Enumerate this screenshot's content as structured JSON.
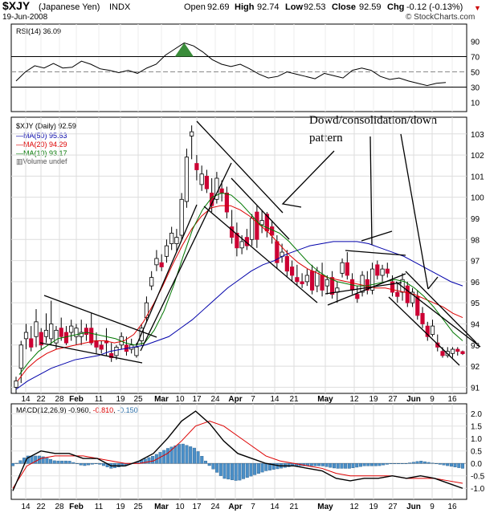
{
  "header": {
    "symbol": "$XJY",
    "name": "(Japanese Yen)",
    "exchange": "INDX",
    "date": "19-Jun-2008",
    "open_label": "Open",
    "open": "92.69",
    "high_label": "High",
    "high": "92.74",
    "low_label": "Low",
    "low": "92.53",
    "close_label": "Close",
    "close": "92.59",
    "chg_label": "Chg",
    "chg": "-0.12 (-0.13%)",
    "brand": "© StockCharts.com"
  },
  "rsi_panel": {
    "label": "RSI(14) 36.09",
    "ticks": [
      "90",
      "70",
      "50",
      "30",
      "10"
    ]
  },
  "price_panel": {
    "legend_title": "$XJY (Daily) 92.59",
    "ma50_label": "MA(50) 95.63",
    "ma20_label": "MA(20) 94.29",
    "ma10_label": "MA(10) 93.17",
    "volume_label": "Volume undef",
    "ticks": [
      "103",
      "102",
      "101",
      "100",
      "99",
      "98",
      "97",
      "96",
      "95",
      "94",
      "93",
      "92",
      "91"
    ]
  },
  "annotation": {
    "text": "Dowd/consolidation/down pattern"
  },
  "macd_panel": {
    "label": "MACD(12,26,9)",
    "value1": "-0.960",
    "value2": "-0.810",
    "value3": "-0.150",
    "ticks": [
      "2.0",
      "1.5",
      "1.0",
      "0.5",
      "0.0",
      "-0.5",
      "-1.0"
    ]
  },
  "x_axis": {
    "labels": [
      "14",
      "22",
      "28",
      "Feb",
      "11",
      "19",
      "25",
      "Mar",
      "10",
      "17",
      "24",
      "Apr",
      "7",
      "14",
      "21",
      "May",
      "12",
      "19",
      "27",
      "Jun",
      "9",
      "16"
    ]
  },
  "colors": {
    "up_candle": "#ffffff",
    "down_candle": "#cc0033",
    "ma50": "#0000aa",
    "ma20": "#dd0000",
    "ma10": "#007700",
    "macd_line": "#000000",
    "signal_line": "#dd0000",
    "histogram": "#4a8fc8",
    "chg_negative": "#cc0000",
    "rsi_peak": "#3a8c3a"
  },
  "chart_data": {
    "type": "candlestick",
    "x_axis_labels": [
      "14",
      "22",
      "28",
      "Feb",
      "11",
      "19",
      "25",
      "Mar",
      "10",
      "17",
      "24",
      "Apr",
      "7",
      "14",
      "21",
      "May",
      "12",
      "19",
      "27",
      "Jun",
      "9",
      "16"
    ],
    "price": {
      "ylim": [
        90.9,
        103.6
      ],
      "candles": [
        {
          "o": 91.0,
          "h": 91.5,
          "l": 90.7,
          "c": 91.3
        },
        {
          "o": 91.9,
          "h": 93.2,
          "l": 91.2,
          "c": 93.0
        },
        {
          "o": 93.3,
          "h": 94.0,
          "l": 92.8,
          "c": 93.6
        },
        {
          "o": 93.3,
          "h": 93.9,
          "l": 92.7,
          "c": 92.9
        },
        {
          "o": 93.4,
          "h": 94.7,
          "l": 92.9,
          "c": 94.1
        },
        {
          "o": 93.6,
          "h": 93.8,
          "l": 92.8,
          "c": 93.0
        },
        {
          "o": 93.4,
          "h": 94.5,
          "l": 93.1,
          "c": 93.7
        },
        {
          "o": 93.3,
          "h": 95.1,
          "l": 93.0,
          "c": 94.0
        },
        {
          "o": 93.1,
          "h": 93.9,
          "l": 92.8,
          "c": 93.7
        },
        {
          "o": 93.8,
          "h": 94.3,
          "l": 93.2,
          "c": 93.4
        },
        {
          "o": 93.6,
          "h": 93.9,
          "l": 93.0,
          "c": 93.1
        },
        {
          "o": 93.6,
          "h": 94.2,
          "l": 93.2,
          "c": 93.9
        },
        {
          "o": 93.4,
          "h": 94.0,
          "l": 93.0,
          "c": 93.8
        },
        {
          "o": 93.4,
          "h": 94.2,
          "l": 93.0,
          "c": 93.6
        },
        {
          "o": 93.8,
          "h": 94.0,
          "l": 93.2,
          "c": 93.5
        },
        {
          "o": 93.8,
          "h": 94.5,
          "l": 93.0,
          "c": 93.1
        },
        {
          "o": 93.2,
          "h": 93.6,
          "l": 92.6,
          "c": 92.9
        },
        {
          "o": 93.0,
          "h": 93.2,
          "l": 92.6,
          "c": 92.8
        },
        {
          "o": 93.2,
          "h": 93.8,
          "l": 92.5,
          "c": 93.1
        },
        {
          "o": 92.6,
          "h": 93.1,
          "l": 92.2,
          "c": 92.4
        },
        {
          "o": 92.5,
          "h": 93.0,
          "l": 92.3,
          "c": 92.9
        },
        {
          "o": 93.0,
          "h": 93.6,
          "l": 92.8,
          "c": 93.4
        },
        {
          "o": 93.0,
          "h": 93.4,
          "l": 92.5,
          "c": 92.7
        },
        {
          "o": 92.8,
          "h": 93.3,
          "l": 92.6,
          "c": 93.0
        },
        {
          "o": 92.5,
          "h": 93.1,
          "l": 92.4,
          "c": 92.9
        },
        {
          "o": 93.2,
          "h": 94.0,
          "l": 93.0,
          "c": 93.8
        },
        {
          "o": 94.3,
          "h": 95.3,
          "l": 94.1,
          "c": 95.0
        },
        {
          "o": 95.8,
          "h": 96.5,
          "l": 95.6,
          "c": 96.2
        },
        {
          "o": 96.8,
          "h": 97.5,
          "l": 96.5,
          "c": 97.1
        },
        {
          "o": 96.9,
          "h": 97.3,
          "l": 96.5,
          "c": 96.7
        },
        {
          "o": 97.2,
          "h": 98.0,
          "l": 96.9,
          "c": 97.7
        },
        {
          "o": 97.8,
          "h": 98.6,
          "l": 97.5,
          "c": 98.3
        },
        {
          "o": 97.8,
          "h": 98.5,
          "l": 97.4,
          "c": 98.1
        },
        {
          "o": 98.2,
          "h": 100.2,
          "l": 98.0,
          "c": 99.9
        },
        {
          "o": 99.8,
          "h": 102.3,
          "l": 99.5,
          "c": 101.9
        },
        {
          "o": 102.9,
          "h": 103.4,
          "l": 101.8,
          "c": 103.1
        },
        {
          "o": 101.6,
          "h": 102.0,
          "l": 100.8,
          "c": 101.3
        },
        {
          "o": 100.6,
          "h": 101.5,
          "l": 100.3,
          "c": 101.1
        },
        {
          "o": 101.0,
          "h": 101.3,
          "l": 100.2,
          "c": 100.4
        },
        {
          "o": 100.2,
          "h": 100.9,
          "l": 99.3,
          "c": 99.6
        },
        {
          "o": 99.9,
          "h": 101.2,
          "l": 99.7,
          "c": 100.9
        },
        {
          "o": 100.4,
          "h": 100.8,
          "l": 99.8,
          "c": 100.2
        },
        {
          "o": 100.2,
          "h": 100.5,
          "l": 99.0,
          "c": 99.3
        },
        {
          "o": 98.6,
          "h": 99.4,
          "l": 97.8,
          "c": 98.1
        },
        {
          "o": 98.3,
          "h": 98.8,
          "l": 97.2,
          "c": 97.6
        },
        {
          "o": 97.6,
          "h": 98.2,
          "l": 97.3,
          "c": 97.9
        },
        {
          "o": 98.1,
          "h": 98.5,
          "l": 97.5,
          "c": 97.7
        },
        {
          "o": 98.0,
          "h": 99.2,
          "l": 97.7,
          "c": 99.0
        },
        {
          "o": 99.3,
          "h": 99.6,
          "l": 97.6,
          "c": 98.0
        },
        {
          "o": 98.7,
          "h": 99.4,
          "l": 98.3,
          "c": 98.9
        },
        {
          "o": 99.2,
          "h": 99.3,
          "l": 98.1,
          "c": 98.4
        },
        {
          "o": 98.6,
          "h": 98.9,
          "l": 97.8,
          "c": 98.2
        },
        {
          "o": 97.9,
          "h": 98.2,
          "l": 96.6,
          "c": 96.9
        },
        {
          "o": 97.2,
          "h": 97.8,
          "l": 96.9,
          "c": 97.4
        },
        {
          "o": 97.2,
          "h": 97.5,
          "l": 96.2,
          "c": 96.5
        },
        {
          "o": 96.7,
          "h": 97.0,
          "l": 96.0,
          "c": 96.3
        },
        {
          "o": 96.2,
          "h": 96.8,
          "l": 95.8,
          "c": 96.0
        },
        {
          "o": 96.0,
          "h": 96.4,
          "l": 95.7,
          "c": 95.9
        },
        {
          "o": 96.0,
          "h": 96.6,
          "l": 95.8,
          "c": 96.3
        },
        {
          "o": 96.5,
          "h": 96.8,
          "l": 95.4,
          "c": 95.6
        },
        {
          "o": 95.8,
          "h": 96.7,
          "l": 95.5,
          "c": 96.5
        },
        {
          "o": 96.3,
          "h": 96.9,
          "l": 95.3,
          "c": 95.6
        },
        {
          "o": 95.8,
          "h": 96.3,
          "l": 95.4,
          "c": 96.1
        },
        {
          "o": 96.2,
          "h": 96.5,
          "l": 95.2,
          "c": 95.4
        },
        {
          "o": 95.5,
          "h": 96.0,
          "l": 95.0,
          "c": 95.7
        },
        {
          "o": 96.4,
          "h": 97.1,
          "l": 96.2,
          "c": 96.9
        },
        {
          "o": 96.9,
          "h": 97.4,
          "l": 96.1,
          "c": 96.3
        },
        {
          "o": 96.1,
          "h": 96.4,
          "l": 95.4,
          "c": 95.6
        },
        {
          "o": 95.4,
          "h": 95.8,
          "l": 95.0,
          "c": 95.2
        },
        {
          "o": 95.5,
          "h": 96.5,
          "l": 95.3,
          "c": 96.3
        },
        {
          "o": 96.1,
          "h": 96.5,
          "l": 95.4,
          "c": 95.6
        },
        {
          "o": 95.6,
          "h": 96.9,
          "l": 95.4,
          "c": 96.6
        },
        {
          "o": 96.8,
          "h": 97.0,
          "l": 96.1,
          "c": 96.3
        },
        {
          "o": 96.3,
          "h": 96.8,
          "l": 96.0,
          "c": 96.6
        },
        {
          "o": 96.6,
          "h": 96.9,
          "l": 96.2,
          "c": 96.4
        },
        {
          "o": 96.0,
          "h": 96.3,
          "l": 95.3,
          "c": 95.5
        },
        {
          "o": 95.5,
          "h": 95.9,
          "l": 95.0,
          "c": 95.3
        },
        {
          "o": 95.5,
          "h": 96.4,
          "l": 95.1,
          "c": 96.1
        },
        {
          "o": 95.8,
          "h": 96.0,
          "l": 94.8,
          "c": 95.0
        },
        {
          "o": 95.0,
          "h": 95.7,
          "l": 94.8,
          "c": 95.5
        },
        {
          "o": 95.3,
          "h": 95.6,
          "l": 94.2,
          "c": 94.4
        },
        {
          "o": 94.5,
          "h": 94.8,
          "l": 93.8,
          "c": 94.0
        },
        {
          "o": 93.9,
          "h": 94.1,
          "l": 93.2,
          "c": 93.4
        },
        {
          "o": 93.5,
          "h": 94.2,
          "l": 93.4,
          "c": 93.9
        },
        {
          "o": 93.1,
          "h": 93.5,
          "l": 92.7,
          "c": 92.9
        },
        {
          "o": 92.7,
          "h": 92.9,
          "l": 92.4,
          "c": 92.5
        },
        {
          "o": 92.5,
          "h": 92.9,
          "l": 92.4,
          "c": 92.7
        },
        {
          "o": 92.6,
          "h": 92.9,
          "l": 92.4,
          "c": 92.8
        },
        {
          "o": 92.8,
          "h": 92.9,
          "l": 92.5,
          "c": 92.7
        },
        {
          "o": 92.69,
          "h": 92.74,
          "l": 92.53,
          "c": 92.59
        }
      ],
      "ma10": [
        91.6,
        92.2,
        92.7,
        93.0,
        93.3,
        93.4,
        93.5,
        93.6,
        93.5,
        93.4,
        93.3,
        93.1,
        93.0,
        93.1,
        93.7,
        94.6,
        95.8,
        97.2,
        98.5,
        99.4,
        100.0,
        100.2,
        100.1,
        99.7,
        99.2,
        98.7,
        98.5,
        98.3,
        97.9,
        97.4,
        96.9,
        96.5,
        96.2,
        96.0,
        95.9,
        95.8,
        95.8,
        95.9,
        96.0,
        96.1,
        96.0,
        95.7,
        95.3,
        94.8,
        94.2,
        93.6,
        93.2
      ],
      "ma20": [
        91.3,
        91.9,
        92.3,
        92.6,
        92.8,
        92.9,
        93.0,
        93.1,
        93.2,
        93.2,
        93.1,
        93.2,
        93.5,
        94.1,
        94.9,
        95.8,
        96.8,
        97.7,
        98.5,
        99.1,
        99.5,
        99.6,
        99.6,
        99.4,
        99.1,
        98.7,
        98.3,
        97.8,
        97.3,
        96.9,
        96.6,
        96.4,
        96.2,
        96.1,
        96.0,
        95.9,
        95.8,
        95.7,
        95.7,
        95.6,
        95.5,
        95.4,
        95.2,
        95.0,
        94.8,
        94.5,
        94.3
      ],
      "ma50": [
        90.9,
        91.3,
        91.6,
        91.9,
        92.1,
        92.3,
        92.4,
        92.5,
        92.7,
        92.8,
        92.9,
        93.0,
        93.2,
        93.4,
        93.8,
        94.2,
        94.7,
        95.2,
        95.7,
        96.1,
        96.5,
        96.8,
        97.0,
        97.3,
        97.5,
        97.7,
        97.8,
        97.9,
        97.9,
        97.9,
        97.8,
        97.6,
        97.4,
        97.2,
        96.9,
        96.6,
        96.3,
        96.0,
        95.8
      ]
    },
    "rsi": {
      "period": 14,
      "current": 36.09,
      "ylim": [
        0,
        100
      ],
      "reference_lines": [
        70,
        50,
        30
      ],
      "values": [
        38,
        50,
        58,
        55,
        61,
        55,
        56,
        64,
        60,
        54,
        52,
        49,
        52,
        48,
        55,
        60,
        72,
        80,
        88,
        84,
        76,
        66,
        60,
        57,
        60,
        54,
        47,
        42,
        44,
        50,
        47,
        44,
        41,
        48,
        45,
        42,
        52,
        55,
        52,
        44,
        40,
        42,
        38,
        35,
        32,
        35,
        36
      ]
    },
    "macd": {
      "params": "12,26,9",
      "macd": -0.96,
      "signal": -0.81,
      "histogram": -0.15,
      "ylim": [
        -1.25,
        2.2
      ],
      "macd_values": [
        -1.1,
        0.2,
        0.5,
        0.4,
        0.4,
        0.2,
        0.2,
        -0.1,
        -0.1,
        0.1,
        0.4,
        1.0,
        1.7,
        2.1,
        1.6,
        0.9,
        0.4,
        0.2,
        0.0,
        -0.1,
        -0.1,
        -0.2,
        -0.3,
        -0.6,
        -0.7,
        -0.6,
        -0.6,
        -0.5,
        -0.6,
        -0.5,
        -0.6,
        -0.8,
        -1.0
      ],
      "signal_values": [
        -1.0,
        -0.1,
        0.2,
        0.3,
        0.3,
        0.3,
        0.2,
        0.1,
        0.0,
        0.0,
        0.1,
        0.4,
        0.9,
        1.5,
        1.7,
        1.5,
        1.1,
        0.7,
        0.3,
        0.1,
        0.0,
        -0.1,
        -0.2,
        -0.4,
        -0.5,
        -0.5,
        -0.5,
        -0.5,
        -0.6,
        -0.6,
        -0.6,
        -0.7,
        -0.8
      ]
    }
  }
}
